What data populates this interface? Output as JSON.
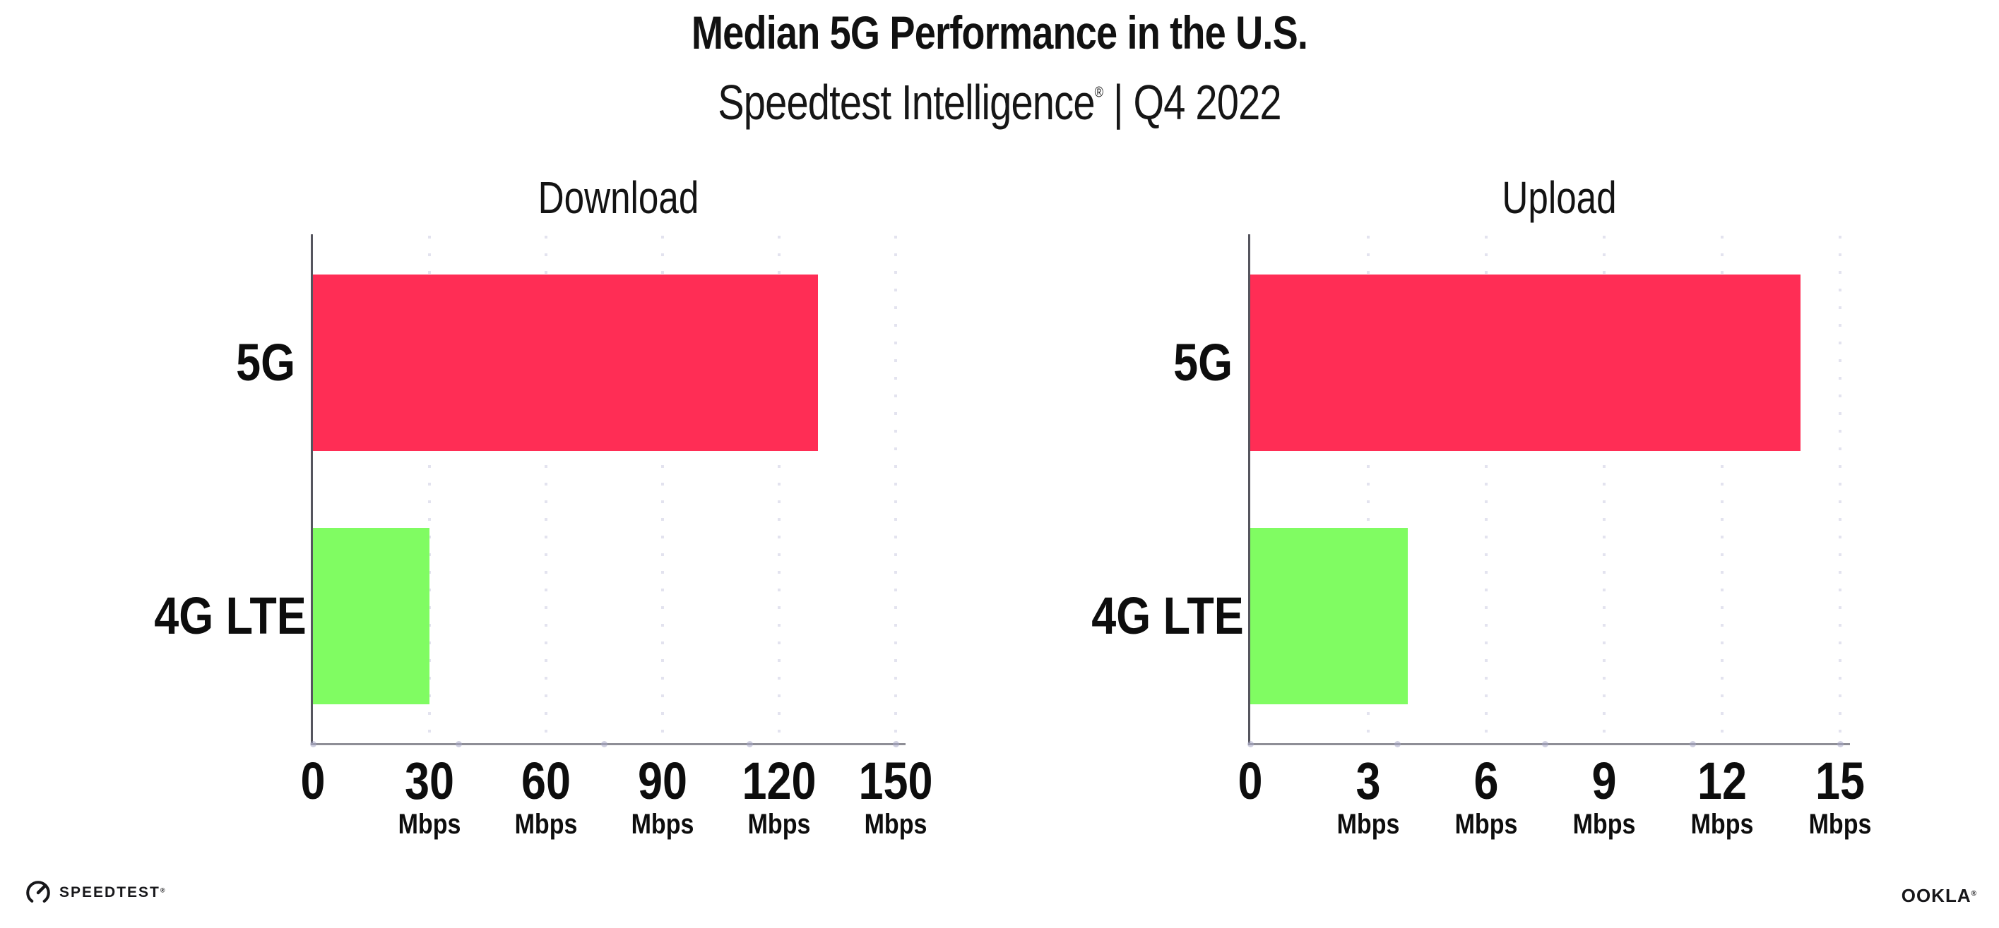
{
  "header": {
    "title": "Median 5G Performance in the U.S.",
    "subtitle_product": "Speedtest Intelligence",
    "subtitle_reg_mark": "®",
    "subtitle_period": " | Q4 2022"
  },
  "chart_data": [
    {
      "type": "bar",
      "orientation": "horizontal",
      "title": "Download",
      "categories": [
        "5G",
        "4G LTE"
      ],
      "values": [
        130,
        30
      ],
      "unit": "Mbps",
      "xlim": [
        0,
        150
      ],
      "ticks": [
        0,
        30,
        60,
        90,
        120,
        150
      ],
      "bar_colors": [
        "#FF2D55",
        "#80FC62"
      ],
      "grid": "dotted-vertical",
      "legend": "none"
    },
    {
      "type": "bar",
      "orientation": "horizontal",
      "title": "Upload",
      "categories": [
        "5G",
        "4G LTE"
      ],
      "values": [
        14,
        4
      ],
      "unit": "Mbps",
      "xlim": [
        0,
        15
      ],
      "ticks": [
        0,
        3,
        6,
        9,
        12,
        15
      ],
      "bar_colors": [
        "#FF2D55",
        "#80FC62"
      ],
      "grid": "dotted-vertical",
      "legend": "none"
    }
  ],
  "colors": {
    "bar_5g": "#FF2D55",
    "bar_4g_lte": "#80FC62",
    "grid_dot": "#E3E3EF",
    "x_axis_line": "#8E8E96",
    "y_axis_line": "#55555E",
    "text": "#141414"
  },
  "footer": {
    "speedtest_label": "SPEEDTEST",
    "speedtest_reg_mark": "®",
    "ookla_label": "OOKLA",
    "ookla_reg_mark": "®"
  }
}
